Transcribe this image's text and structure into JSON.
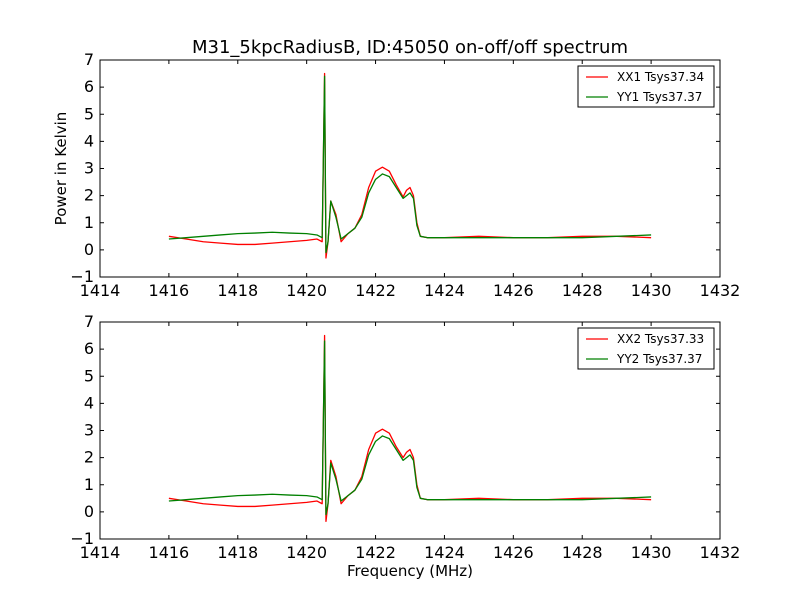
{
  "title": "M31_5kpcRadiusB, ID:45050 on-off/off spectrum",
  "chart_data": [
    {
      "type": "line",
      "ylabel": "Power in Kelvin",
      "xlabel": "",
      "xlim": [
        1414,
        1432
      ],
      "ylim": [
        -1,
        7
      ],
      "xticks": [
        "1414",
        "1416",
        "1418",
        "1420",
        "1422",
        "1424",
        "1426",
        "1428",
        "1430",
        "1432"
      ],
      "yticks": [
        "−1",
        "0",
        "1",
        "2",
        "3",
        "4",
        "5",
        "6",
        "7"
      ],
      "legend_position": "top-right",
      "series": [
        {
          "name": "XX1 Tsys37.34",
          "color": "#ff0000",
          "x": [
            1416.0,
            1416.5,
            1417.0,
            1417.5,
            1418.0,
            1418.5,
            1419.0,
            1419.5,
            1420.0,
            1420.3,
            1420.45,
            1420.52,
            1420.56,
            1420.62,
            1420.7,
            1420.85,
            1421.0,
            1421.2,
            1421.4,
            1421.6,
            1421.8,
            1422.0,
            1422.2,
            1422.4,
            1422.6,
            1422.8,
            1422.9,
            1423.0,
            1423.1,
            1423.2,
            1423.3,
            1423.5,
            1424.0,
            1425.0,
            1426.0,
            1427.0,
            1428.0,
            1429.0,
            1430.0
          ],
          "y": [
            0.5,
            0.4,
            0.3,
            0.25,
            0.2,
            0.2,
            0.25,
            0.3,
            0.35,
            0.4,
            0.3,
            6.5,
            -0.3,
            0.3,
            1.8,
            1.3,
            0.3,
            0.6,
            0.8,
            1.3,
            2.3,
            2.9,
            3.05,
            2.9,
            2.4,
            1.95,
            2.2,
            2.3,
            2.0,
            1.0,
            0.5,
            0.45,
            0.45,
            0.5,
            0.45,
            0.45,
            0.5,
            0.5,
            0.45
          ]
        },
        {
          "name": "YY1 Tsys37.37",
          "color": "#008000",
          "x": [
            1416.0,
            1416.5,
            1417.0,
            1417.5,
            1418.0,
            1418.5,
            1419.0,
            1419.5,
            1420.0,
            1420.3,
            1420.45,
            1420.52,
            1420.56,
            1420.62,
            1420.7,
            1420.85,
            1421.0,
            1421.2,
            1421.4,
            1421.6,
            1421.8,
            1422.0,
            1422.2,
            1422.4,
            1422.6,
            1422.8,
            1422.9,
            1423.0,
            1423.1,
            1423.2,
            1423.3,
            1423.5,
            1424.0,
            1425.0,
            1426.0,
            1427.0,
            1428.0,
            1429.0,
            1430.0
          ],
          "y": [
            0.4,
            0.45,
            0.5,
            0.55,
            0.6,
            0.62,
            0.65,
            0.62,
            0.6,
            0.55,
            0.45,
            6.4,
            -0.1,
            0.3,
            1.8,
            1.2,
            0.4,
            0.6,
            0.8,
            1.2,
            2.1,
            2.6,
            2.8,
            2.7,
            2.3,
            1.9,
            2.0,
            2.1,
            1.9,
            0.9,
            0.5,
            0.45,
            0.45,
            0.45,
            0.45,
            0.45,
            0.45,
            0.5,
            0.55
          ]
        }
      ]
    },
    {
      "type": "line",
      "ylabel": "",
      "xlabel": "Frequency (MHz)",
      "xlim": [
        1414,
        1432
      ],
      "ylim": [
        -1,
        7
      ],
      "xticks": [
        "1414",
        "1416",
        "1418",
        "1420",
        "1422",
        "1424",
        "1426",
        "1428",
        "1430",
        "1432"
      ],
      "yticks": [
        "−1",
        "0",
        "1",
        "2",
        "3",
        "4",
        "5",
        "6",
        "7"
      ],
      "legend_position": "top-right",
      "series": [
        {
          "name": "XX2 Tsys37.33",
          "color": "#ff0000",
          "x": [
            1416.0,
            1416.5,
            1417.0,
            1417.5,
            1418.0,
            1418.5,
            1419.0,
            1419.5,
            1420.0,
            1420.3,
            1420.45,
            1420.52,
            1420.56,
            1420.62,
            1420.7,
            1420.85,
            1421.0,
            1421.2,
            1421.4,
            1421.6,
            1421.8,
            1422.0,
            1422.2,
            1422.4,
            1422.6,
            1422.8,
            1422.9,
            1423.0,
            1423.1,
            1423.2,
            1423.3,
            1423.5,
            1424.0,
            1425.0,
            1426.0,
            1427.0,
            1428.0,
            1429.0,
            1430.0
          ],
          "y": [
            0.5,
            0.4,
            0.3,
            0.25,
            0.2,
            0.2,
            0.25,
            0.3,
            0.35,
            0.4,
            0.3,
            6.5,
            -0.35,
            0.3,
            1.9,
            1.3,
            0.3,
            0.6,
            0.8,
            1.3,
            2.3,
            2.9,
            3.05,
            2.9,
            2.4,
            2.0,
            2.2,
            2.3,
            2.0,
            1.0,
            0.5,
            0.45,
            0.45,
            0.5,
            0.45,
            0.45,
            0.5,
            0.5,
            0.45
          ]
        },
        {
          "name": "YY2 Tsys37.37",
          "color": "#008000",
          "x": [
            1416.0,
            1416.5,
            1417.0,
            1417.5,
            1418.0,
            1418.5,
            1419.0,
            1419.5,
            1420.0,
            1420.3,
            1420.45,
            1420.52,
            1420.56,
            1420.62,
            1420.7,
            1420.85,
            1421.0,
            1421.2,
            1421.4,
            1421.6,
            1421.8,
            1422.0,
            1422.2,
            1422.4,
            1422.6,
            1422.8,
            1422.9,
            1423.0,
            1423.1,
            1423.2,
            1423.3,
            1423.5,
            1424.0,
            1425.0,
            1426.0,
            1427.0,
            1428.0,
            1429.0,
            1430.0
          ],
          "y": [
            0.4,
            0.45,
            0.5,
            0.55,
            0.6,
            0.62,
            0.65,
            0.62,
            0.6,
            0.55,
            0.45,
            6.3,
            -0.1,
            0.3,
            1.8,
            1.2,
            0.4,
            0.6,
            0.8,
            1.2,
            2.1,
            2.6,
            2.8,
            2.7,
            2.3,
            1.9,
            2.0,
            2.1,
            1.9,
            0.9,
            0.5,
            0.45,
            0.45,
            0.45,
            0.45,
            0.45,
            0.45,
            0.5,
            0.55
          ]
        }
      ]
    }
  ]
}
